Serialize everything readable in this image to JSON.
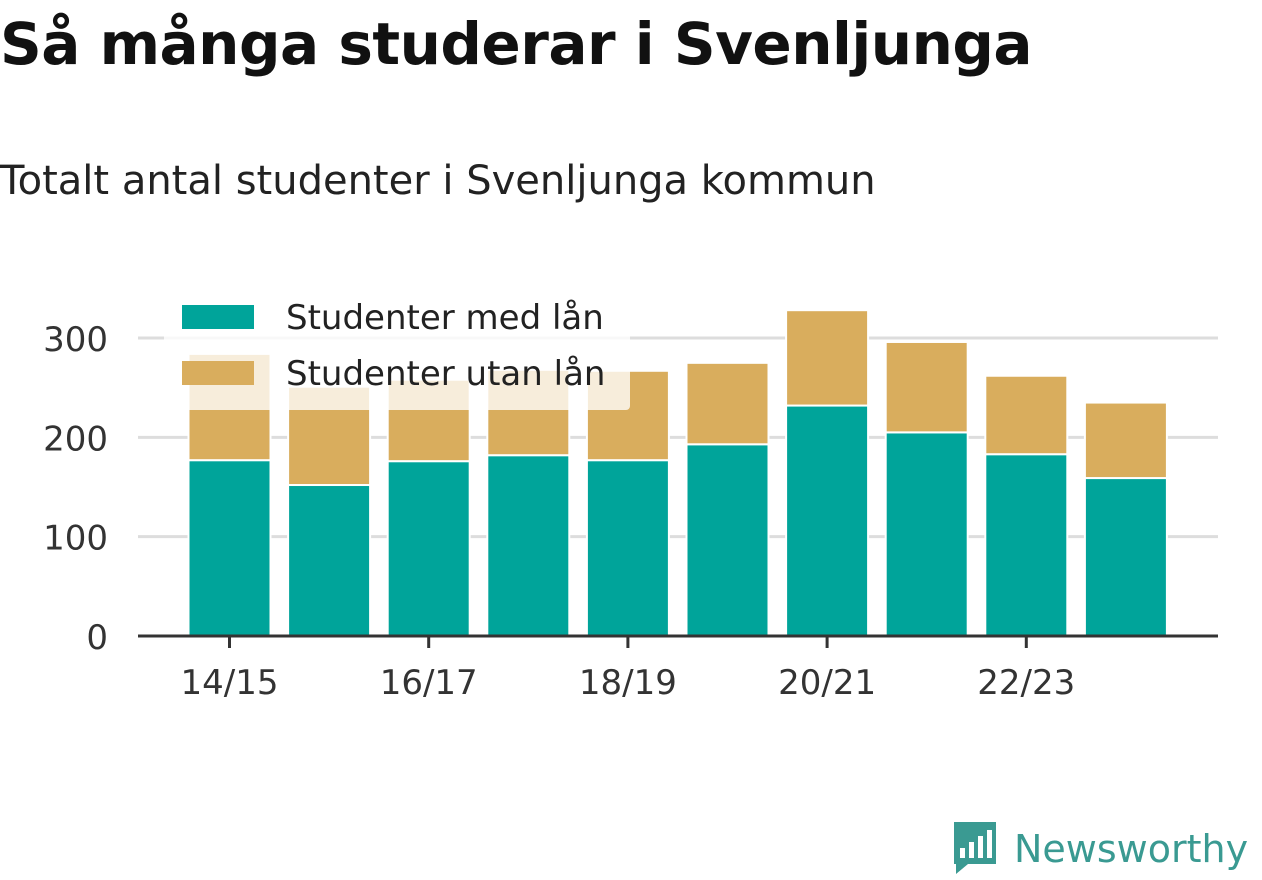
{
  "header": {
    "title": "Så många studerar i Svenljunga",
    "subtitle": "Totalt antal studenter i Svenljunga kommun"
  },
  "brand": {
    "name": "Newsworthy",
    "icon": "newsworthy-logo-icon"
  },
  "colors": {
    "med_lan": "#00a49a",
    "utan_lan": "#d9ad5d",
    "grid": "#dddddd",
    "axis": "#333333",
    "brand": "#3a9a92"
  },
  "chart_data": {
    "type": "bar",
    "stacked": true,
    "categories": [
      "14/15",
      "15/16",
      "16/17",
      "17/18",
      "18/19",
      "19/20",
      "20/21",
      "21/22",
      "22/23",
      "23/24"
    ],
    "x_tick_labels": [
      "14/15",
      "16/17",
      "18/19",
      "20/21",
      "22/23"
    ],
    "series": [
      {
        "name": "Studenter med lån",
        "values": [
          177,
          152,
          176,
          182,
          177,
          193,
          232,
          205,
          183,
          159
        ]
      },
      {
        "name": "Studenter utan lån",
        "values": [
          107,
          99,
          82,
          86,
          90,
          82,
          96,
          91,
          79,
          76
        ]
      }
    ],
    "ylim": [
      0,
      330
    ],
    "y_ticks": [
      0,
      100,
      200,
      300
    ],
    "grid": true,
    "legend_position": "top-left"
  }
}
